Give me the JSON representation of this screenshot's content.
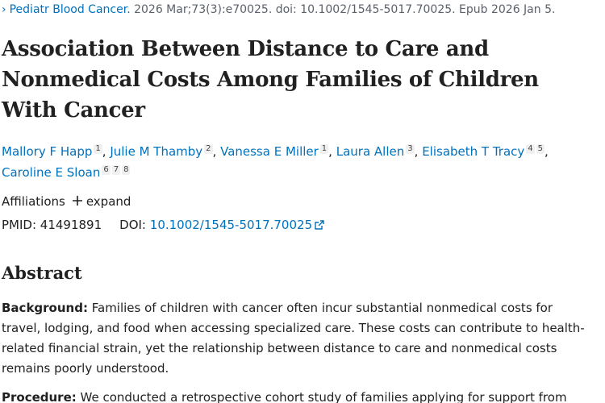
{
  "citation": {
    "journal": "Pediatr Blood Cancer.",
    "details": "2026 Mar;73(3):e70025. doi: 10.1002/1545-5017.70025. Epub 2026 Jan 5."
  },
  "title": "Association Between Distance to Care and Nonmedical Costs Among Families of Children With Cancer",
  "author_separator": ",",
  "authors": [
    {
      "name": "Mallory F Happ",
      "affiliations": [
        1
      ]
    },
    {
      "name": "Julie M Thamby",
      "affiliations": [
        2
      ]
    },
    {
      "name": "Vanessa E Miller",
      "affiliations": [
        1
      ]
    },
    {
      "name": "Laura Allen",
      "affiliations": [
        3
      ]
    },
    {
      "name": "Elisabeth T Tracy",
      "affiliations": [
        4,
        5
      ]
    },
    {
      "name": "Caroline E Sloan",
      "affiliations": [
        6,
        7,
        8
      ]
    }
  ],
  "affiliations": {
    "label": "Affiliations",
    "toggle": "expand"
  },
  "identifiers": {
    "pmid_label": "PMID:",
    "pmid": "41491891",
    "doi_label": "DOI:",
    "doi": "10.1002/1545-5017.70025"
  },
  "abstract": {
    "heading": "Abstract",
    "sections": [
      {
        "label": "Background:",
        "text": "Families of children with cancer often incur substantial nonmedical costs for travel, lodging, and food when accessing specialized care. These costs can contribute to health-related financial strain, yet the relationship between distance to care and nonmedical costs remains poorly understood."
      },
      {
        "label": "Procedure:",
        "text": "We conducted a retrospective cohort study of families applying for support from"
      }
    ]
  }
}
